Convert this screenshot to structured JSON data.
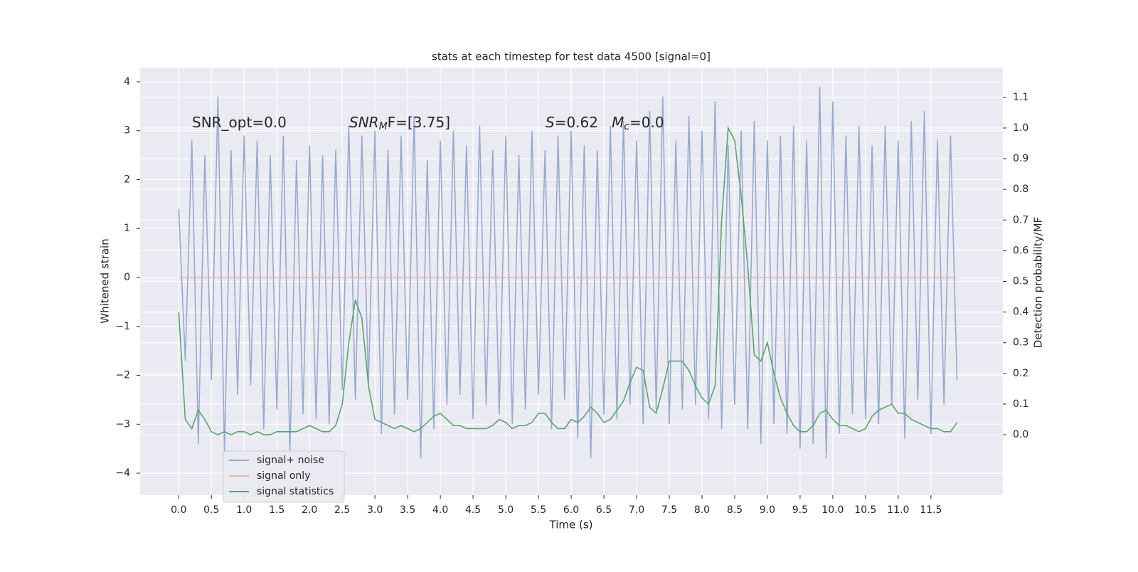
{
  "chart_data": {
    "type": "line",
    "title": "stats at each timestep for test data 4500 [signal=0]",
    "xlabel": "Time (s)",
    "ylabel": "Whitened strain",
    "y2label": "Detection probability/MF",
    "annotations": [
      [
        {
          "text": "SNR_opt=0.0"
        }
      ],
      [
        {
          "text": "SNR",
          "italic": true
        },
        {
          "text": "M",
          "italic": true,
          "sub": true
        },
        {
          "text": "F=[3.75]"
        }
      ],
      [
        {
          "text": "S",
          "italic": true
        },
        {
          "text": "=0.62   "
        },
        {
          "text": "M",
          "italic": true
        },
        {
          "text": "c",
          "italic": true,
          "sub": true
        },
        {
          "text": "=0.0"
        }
      ]
    ],
    "x": [
      0.0,
      0.1,
      0.2,
      0.3,
      0.4,
      0.5,
      0.6,
      0.7,
      0.8,
      0.9,
      1.0,
      1.1,
      1.2,
      1.3,
      1.4,
      1.5,
      1.6,
      1.7,
      1.8,
      1.9,
      2.0,
      2.1,
      2.2,
      2.3,
      2.4,
      2.5,
      2.6,
      2.7,
      2.8,
      2.9,
      3.0,
      3.1,
      3.2,
      3.3,
      3.4,
      3.5,
      3.6,
      3.7,
      3.8,
      3.9,
      4.0,
      4.1,
      4.2,
      4.3,
      4.4,
      4.5,
      4.6,
      4.7,
      4.8,
      4.9,
      5.0,
      5.1,
      5.2,
      5.3,
      5.4,
      5.5,
      5.6,
      5.7,
      5.8,
      5.9,
      6.0,
      6.1,
      6.2,
      6.3,
      6.4,
      6.5,
      6.6,
      6.7,
      6.8,
      6.9,
      7.0,
      7.1,
      7.2,
      7.3,
      7.4,
      7.5,
      7.6,
      7.7,
      7.8,
      7.9,
      8.0,
      8.1,
      8.2,
      8.3,
      8.4,
      8.5,
      8.6,
      8.7,
      8.8,
      8.9,
      9.0,
      9.1,
      9.2,
      9.3,
      9.4,
      9.5,
      9.6,
      9.7,
      9.8,
      9.9,
      10.0,
      10.1,
      10.2,
      10.3,
      10.4,
      10.5,
      10.6,
      10.7,
      10.8,
      10.9,
      11.0,
      11.1,
      11.2,
      11.3,
      11.4,
      11.5,
      11.6,
      11.7,
      11.8,
      11.9
    ],
    "series": [
      {
        "name": "signal+ noise",
        "color": "#98aad0",
        "values": [
          1.4,
          -1.7,
          2.8,
          -3.4,
          2.5,
          -2.1,
          3.7,
          -3.6,
          2.6,
          -2.4,
          2.9,
          -2.2,
          2.8,
          -3.1,
          2.5,
          -2.7,
          2.9,
          -3.6,
          2.4,
          -2.8,
          2.7,
          -2.9,
          2.5,
          -3.0,
          2.6,
          -2.3,
          3.1,
          -2.5,
          2.9,
          -2.2,
          3.0,
          -3.2,
          2.6,
          -2.8,
          2.9,
          -2.5,
          3.3,
          -3.7,
          2.4,
          -3.1,
          2.8,
          -2.6,
          3.0,
          -2.4,
          2.7,
          -2.9,
          3.1,
          -2.6,
          2.6,
          -2.8,
          2.9,
          -3.0,
          2.5,
          -2.7,
          3.0,
          -2.4,
          2.6,
          -3.1,
          2.9,
          -2.5,
          3.0,
          -3.3,
          2.7,
          -3.7,
          2.6,
          -2.8,
          3.1,
          -2.9,
          3.2,
          -2.6,
          2.8,
          -3.0,
          3.4,
          -2.7,
          3.7,
          -3.0,
          2.8,
          -2.7,
          3.3,
          -2.6,
          3.0,
          -2.9,
          3.6,
          -3.1,
          2.7,
          -2.6,
          3.0,
          -3.1,
          3.2,
          -3.4,
          2.8,
          -3.0,
          2.9,
          -3.2,
          3.1,
          -3.5,
          2.8,
          -3.4,
          3.9,
          -3.7,
          3.6,
          -3.2,
          2.9,
          -2.8,
          3.1,
          -2.9,
          2.7,
          -3.0,
          3.1,
          -2.6,
          2.8,
          -3.3,
          3.2,
          -2.5,
          3.4,
          -3.2,
          2.8,
          -2.6,
          2.9,
          -2.1
        ]
      },
      {
        "name": "signal only",
        "color": "#eeb39a",
        "values": [
          0,
          0,
          0,
          0,
          0,
          0,
          0,
          0,
          0,
          0,
          0,
          0,
          0,
          0,
          0,
          0,
          0,
          0,
          0,
          0,
          0,
          0,
          0,
          0,
          0,
          0,
          0,
          0,
          0,
          0,
          0,
          0,
          0,
          0,
          0,
          0,
          0,
          0,
          0,
          0,
          0,
          0,
          0,
          0,
          0,
          0,
          0,
          0,
          0,
          0,
          0,
          0,
          0,
          0,
          0,
          0,
          0,
          0,
          0,
          0,
          0,
          0,
          0,
          0,
          0,
          0,
          0,
          0,
          0,
          0,
          0,
          0,
          0,
          0,
          0,
          0,
          0,
          0,
          0,
          0,
          0,
          0,
          0,
          0,
          0,
          0,
          0,
          0,
          0,
          0,
          0,
          0,
          0,
          0,
          0,
          0,
          0,
          0,
          0,
          0,
          0,
          0,
          0,
          0,
          0,
          0,
          0,
          0,
          0,
          0,
          0,
          0,
          0,
          0,
          0,
          0,
          0,
          0,
          0,
          0
        ]
      },
      {
        "name": "signal statistics",
        "color": "#55a868",
        "axis": "y2",
        "values": [
          0.4,
          0.05,
          0.02,
          0.08,
          0.05,
          0.01,
          0.0,
          0.01,
          0.0,
          0.01,
          0.01,
          0.0,
          0.01,
          0.0,
          0.0,
          0.01,
          0.01,
          0.01,
          0.01,
          0.02,
          0.03,
          0.02,
          0.01,
          0.01,
          0.03,
          0.1,
          0.3,
          0.44,
          0.38,
          0.16,
          0.05,
          0.04,
          0.03,
          0.02,
          0.03,
          0.02,
          0.01,
          0.02,
          0.04,
          0.06,
          0.07,
          0.05,
          0.03,
          0.03,
          0.02,
          0.02,
          0.02,
          0.02,
          0.03,
          0.05,
          0.04,
          0.02,
          0.03,
          0.03,
          0.04,
          0.07,
          0.07,
          0.04,
          0.02,
          0.02,
          0.05,
          0.04,
          0.06,
          0.09,
          0.07,
          0.04,
          0.05,
          0.08,
          0.11,
          0.17,
          0.22,
          0.21,
          0.09,
          0.07,
          0.15,
          0.24,
          0.24,
          0.24,
          0.21,
          0.16,
          0.12,
          0.1,
          0.16,
          0.7,
          1.0,
          0.96,
          0.78,
          0.55,
          0.26,
          0.24,
          0.3,
          0.2,
          0.12,
          0.07,
          0.03,
          0.01,
          0.01,
          0.03,
          0.07,
          0.08,
          0.05,
          0.03,
          0.03,
          0.02,
          0.01,
          0.02,
          0.06,
          0.08,
          0.09,
          0.1,
          0.07,
          0.07,
          0.05,
          0.04,
          0.03,
          0.02,
          0.02,
          0.01,
          0.01,
          0.04
        ]
      }
    ],
    "xlim": [
      -0.59,
      12.6
    ],
    "xticks": [
      {
        "value": 0,
        "label": "0.0"
      },
      0.5,
      {
        "value": 1,
        "label": "1.0"
      },
      1.5,
      {
        "value": 2,
        "label": "2.0"
      },
      2.5,
      {
        "value": 3,
        "label": "3.0"
      },
      3.5,
      {
        "value": 4,
        "label": "4.0"
      },
      4.5,
      {
        "value": 5,
        "label": "5.0"
      },
      5.5,
      {
        "value": 6,
        "label": "6.0"
      },
      6.5,
      {
        "value": 7,
        "label": "7.0"
      },
      7.5,
      {
        "value": 8,
        "label": "8.0"
      },
      8.5,
      {
        "value": 9,
        "label": "9.0"
      },
      9.5,
      {
        "value": 10,
        "label": "10.0"
      },
      10.5,
      {
        "value": 11,
        "label": "11.0"
      },
      11.5
    ],
    "ylim": [
      -4.45,
      4.29
    ],
    "yticks": [
      {
        "value": -4,
        "label": "−4"
      },
      {
        "value": -3,
        "label": "−3"
      },
      {
        "value": -2,
        "label": "−2"
      },
      {
        "value": -1,
        "label": "−1"
      },
      0,
      1,
      2,
      3,
      4
    ],
    "y2lim": [
      -0.197,
      1.197
    ],
    "y2ticks": [
      {
        "value": 0,
        "label": "0.0"
      },
      0.1,
      0.2,
      0.3,
      0.4,
      0.5,
      0.6,
      0.7,
      0.8,
      0.9,
      {
        "value": 1,
        "label": "1.0"
      },
      1.1
    ],
    "grid": true,
    "legend": "lower left"
  }
}
